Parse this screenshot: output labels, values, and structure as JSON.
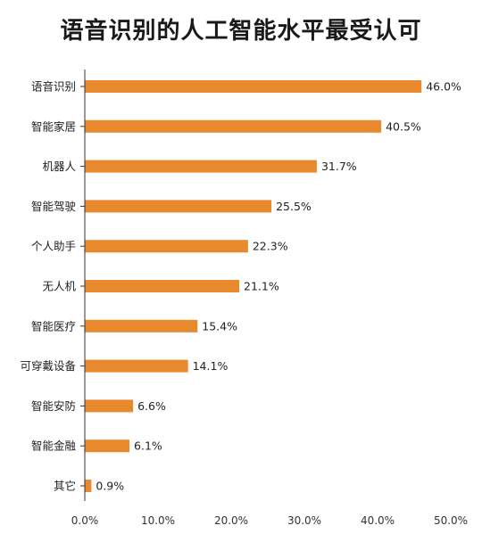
{
  "chart_data": {
    "type": "bar",
    "orientation": "horizontal",
    "title": "语音识别的人工智能水平最受认可",
    "categories": [
      "语音识别",
      "智能家居",
      "机器人",
      "智能驾驶",
      "个人助手",
      "无人机",
      "智能医疗",
      "可穿戴设备",
      "智能安防",
      "智能金融",
      "其它"
    ],
    "values": [
      46.0,
      40.5,
      31.7,
      25.5,
      22.3,
      21.1,
      15.4,
      14.1,
      6.6,
      6.1,
      0.9
    ],
    "value_labels": [
      "46.0%",
      "40.5%",
      "31.7%",
      "25.5%",
      "22.3%",
      "21.1%",
      "15.4%",
      "14.1%",
      "6.6%",
      "6.1%",
      "0.9%"
    ],
    "xlim": [
      0,
      50
    ],
    "xticks": [
      0,
      10,
      20,
      30,
      40,
      50
    ],
    "xtick_labels": [
      "0.0%",
      "10.0%",
      "20.0%",
      "30.0%",
      "40.0%",
      "50.0%"
    ],
    "xlabel": "",
    "ylabel": "",
    "grid": false,
    "legend": "none",
    "bar_color": "#e8892e"
  }
}
